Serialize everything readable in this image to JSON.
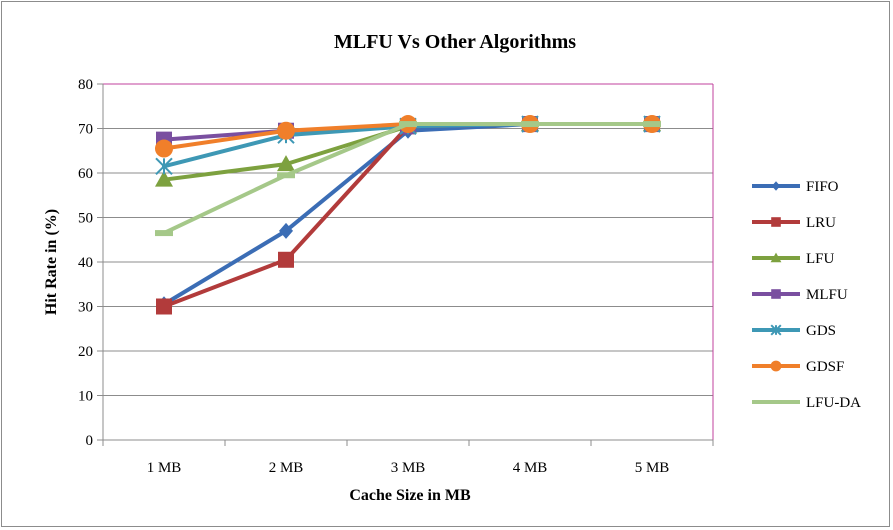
{
  "chart_data": {
    "type": "line",
    "title": "MLFU Vs Other Algorithms",
    "xlabel": "Cache Size in MB",
    "ylabel": "Hit Rate in (%)",
    "categories": [
      "1 MB",
      "2 MB",
      "3 MB",
      "4 MB",
      "5 MB"
    ],
    "ylim": [
      0,
      80
    ],
    "yticks": [
      "0",
      "10",
      "20",
      "30",
      "40",
      "50",
      "60",
      "70",
      "80"
    ],
    "grid": true,
    "legend_position": "right",
    "series": [
      {
        "name": "FIFO",
        "color": "#3B6DB5",
        "marker": "diamond",
        "values": [
          30.5,
          47,
          69.5,
          71,
          71
        ]
      },
      {
        "name": "LRU",
        "color": "#B23B3B",
        "marker": "square",
        "values": [
          30,
          40.5,
          70.5,
          71,
          71
        ]
      },
      {
        "name": "LFU",
        "color": "#7DA13F",
        "marker": "triangle",
        "values": [
          58.5,
          62,
          70.5,
          71,
          71
        ]
      },
      {
        "name": "MLFU",
        "color": "#7A4FA0",
        "marker": "square",
        "values": [
          67.5,
          69.5,
          70.5,
          71,
          71
        ]
      },
      {
        "name": "GDS",
        "color": "#3E98B5",
        "marker": "star",
        "values": [
          61.5,
          68.5,
          70.5,
          71,
          71
        ]
      },
      {
        "name": "GDSF",
        "color": "#F07F2A",
        "marker": "circle",
        "values": [
          65.5,
          69.5,
          71,
          71,
          71
        ]
      },
      {
        "name": "LFU-DA",
        "color": "#A5C889",
        "marker": "dash",
        "values": [
          46.5,
          59.5,
          71,
          71,
          71
        ]
      }
    ],
    "plot_border_color": "#C0409C",
    "grid_color": "#8c8c8c"
  }
}
